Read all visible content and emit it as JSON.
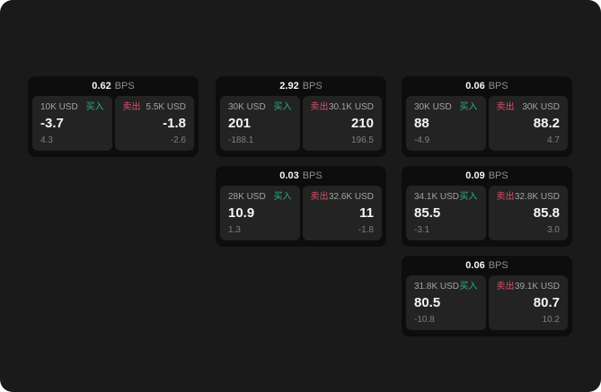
{
  "labels": {
    "bps_unit": "BPS",
    "buy": "买入",
    "sell": "卖出"
  },
  "colors": {
    "background": "#1a1a1a",
    "card": "#0d0d0d",
    "panel": "#232323",
    "buy_green": "#2fad7e",
    "sell_red": "#d9506b"
  },
  "cards": [
    {
      "bps": "0.62",
      "buy": {
        "amount": "10K USD",
        "price": "-3.7",
        "delta": "4.3"
      },
      "sell": {
        "amount": "5.5K USD",
        "price": "-1.8",
        "delta": "-2.6"
      }
    },
    {
      "bps": "2.92",
      "buy": {
        "amount": "30K USD",
        "price": "201",
        "delta": "-188.1"
      },
      "sell": {
        "amount": "30.1K USD",
        "price": "210",
        "delta": "196.5"
      }
    },
    {
      "bps": "0.06",
      "buy": {
        "amount": "30K USD",
        "price": "88",
        "delta": "-4.9"
      },
      "sell": {
        "amount": "30K USD",
        "price": "88.2",
        "delta": "4.7"
      }
    },
    {
      "bps": "0.03",
      "buy": {
        "amount": "28K USD",
        "price": "10.9",
        "delta": "1.3"
      },
      "sell": {
        "amount": "32.6K USD",
        "price": "11",
        "delta": "-1.8"
      }
    },
    {
      "bps": "0.09",
      "buy": {
        "amount": "34.1K USD",
        "price": "85.5",
        "delta": "-3.1"
      },
      "sell": {
        "amount": "32.8K USD",
        "price": "85.8",
        "delta": "3.0"
      }
    },
    {
      "bps": "0.06",
      "buy": {
        "amount": "31.8K USD",
        "price": "80.5",
        "delta": "-10.8"
      },
      "sell": {
        "amount": "39.1K USD",
        "price": "80.7",
        "delta": "10.2"
      }
    }
  ]
}
